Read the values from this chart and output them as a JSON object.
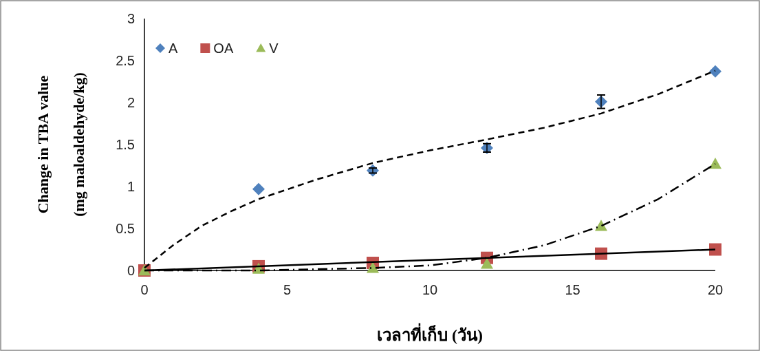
{
  "chart_data": {
    "type": "scatter",
    "xlabel": "เวลาที่เก็บ (วัน)",
    "ylabel": "Change in TBA value\n(mg maloaldehyde/kg)",
    "xlim": [
      0,
      20
    ],
    "xticks": [
      0,
      5,
      10,
      15,
      20
    ],
    "ylim": [
      0,
      3
    ],
    "yticks": [
      0,
      0.5,
      1,
      1.5,
      2,
      2.5,
      3
    ],
    "grid": false,
    "legend": "top left",
    "series": [
      {
        "type": "line",
        "color": "#000000",
        "line_style": "dashed",
        "marker": "none",
        "x": [
          0,
          1,
          2,
          3,
          4,
          6,
          8,
          10,
          12,
          14,
          16,
          18,
          20
        ],
        "values": [
          0.03,
          0.3,
          0.53,
          0.7,
          0.85,
          1.08,
          1.28,
          1.43,
          1.56,
          1.7,
          1.87,
          2.1,
          2.38
        ]
      },
      {
        "type": "line",
        "color": "#000000",
        "line_style": "solid",
        "marker": "none",
        "x": [
          0,
          20
        ],
        "values": [
          0,
          0.25
        ]
      },
      {
        "type": "line",
        "color": "#000000",
        "line_style": "dashdot",
        "marker": "none",
        "x": [
          0,
          4,
          8,
          10,
          12,
          14,
          16,
          18,
          20
        ],
        "values": [
          0,
          0.0,
          0.03,
          0.06,
          0.15,
          0.3,
          0.53,
          0.85,
          1.27
        ]
      },
      {
        "name": "A",
        "color": "#4f81bd",
        "marker": "diamond",
        "x": [
          4,
          8,
          12,
          16,
          20
        ],
        "values": [
          0.97,
          1.19,
          1.46,
          2.01,
          2.37
        ],
        "errors": [
          null,
          0.03,
          0.05,
          0.08,
          null
        ]
      },
      {
        "name": "OA",
        "color": "#c0504d",
        "marker": "square",
        "x": [
          0,
          4,
          8,
          12,
          16,
          20
        ],
        "values": [
          0,
          0.05,
          0.09,
          0.15,
          0.2,
          0.25
        ]
      },
      {
        "name": "V",
        "color": "#9bbb59",
        "marker": "triangle",
        "x": [
          0,
          4,
          8,
          12,
          16,
          20
        ],
        "values": [
          0,
          0.02,
          0.03,
          0.08,
          0.53,
          1.27
        ]
      }
    ]
  }
}
